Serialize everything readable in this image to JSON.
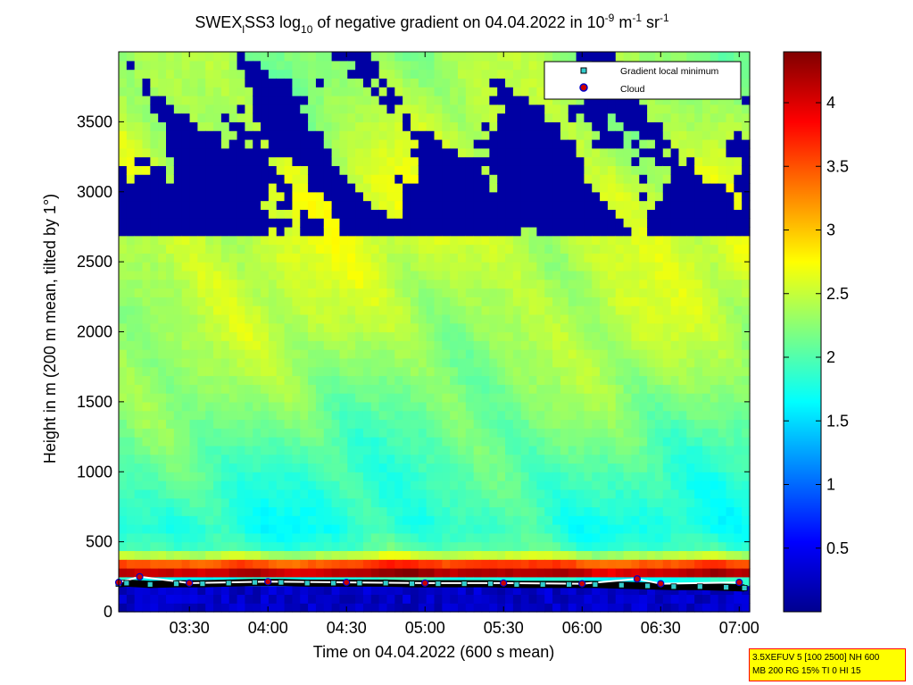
{
  "chart_data": {
    "type": "heatmap",
    "title_parts": {
      "prefix": "SWEX",
      "sub1": "l",
      "mid": "SS3 log",
      "sub2": "10",
      "text": " of negative gradient on 04.04.2022 in 10",
      "exp1": "-9",
      "unit1": " m",
      "exp2": "-1",
      "unit2": " sr",
      "exp3": "-1"
    },
    "xlabel": "Time on 04.04.2022 (600 s mean)",
    "ylabel": "Height in m (200 m mean, tilted by 1°)",
    "x_range_minutes_of_day": [
      183,
      424
    ],
    "x_ticks": [
      {
        "label": "03:30",
        "minute": 210
      },
      {
        "label": "04:00",
        "minute": 240
      },
      {
        "label": "04:30",
        "minute": 270
      },
      {
        "label": "05:00",
        "minute": 300
      },
      {
        "label": "05:30",
        "minute": 330
      },
      {
        "label": "06:00",
        "minute": 360
      },
      {
        "label": "06:30",
        "minute": 390
      },
      {
        "label": "07:00",
        "minute": 420
      }
    ],
    "ylim": [
      0,
      4000
    ],
    "y_ticks": [
      0,
      500,
      1000,
      1500,
      2000,
      2500,
      3000,
      3500
    ],
    "colorbar": {
      "range": [
        0,
        4.4
      ],
      "ticks": [
        "0.5",
        "1",
        "1.5",
        "2",
        "2.5",
        "3",
        "3.5",
        "4"
      ],
      "tick_values": [
        0.5,
        1,
        1.5,
        2,
        2.5,
        3,
        3.5,
        4
      ],
      "colormap": "jet"
    },
    "field_profile_by_height": [
      {
        "height": 0,
        "value": 0.15
      },
      {
        "height": 100,
        "value": 0.2
      },
      {
        "height": 200,
        "value": 0.6
      },
      {
        "height": 260,
        "value": 4.3
      },
      {
        "height": 320,
        "value": 3.9
      },
      {
        "height": 380,
        "value": 3.0
      },
      {
        "height": 430,
        "value": 2.0
      },
      {
        "height": 600,
        "value": 1.8
      },
      {
        "height": 1000,
        "value": 1.95
      },
      {
        "height": 1500,
        "value": 2.2
      },
      {
        "height": 2000,
        "value": 2.4
      },
      {
        "height": 2500,
        "value": 2.5
      },
      {
        "height": 3000,
        "value": 2.6
      },
      {
        "height": 3500,
        "value": 2.4
      },
      {
        "height": 4000,
        "value": 2.3
      }
    ],
    "low_value_region": {
      "value": 0.1,
      "description_free": true
    },
    "gradient_local_minimum": [
      {
        "t": 183,
        "h": 200
      },
      {
        "t": 186,
        "h": 205
      },
      {
        "t": 195,
        "h": 195
      },
      {
        "t": 205,
        "h": 200
      },
      {
        "t": 215,
        "h": 200
      },
      {
        "t": 225,
        "h": 205
      },
      {
        "t": 235,
        "h": 210
      },
      {
        "t": 245,
        "h": 210
      },
      {
        "t": 255,
        "h": 205
      },
      {
        "t": 265,
        "h": 205
      },
      {
        "t": 275,
        "h": 205
      },
      {
        "t": 285,
        "h": 205
      },
      {
        "t": 295,
        "h": 200
      },
      {
        "t": 305,
        "h": 200
      },
      {
        "t": 315,
        "h": 200
      },
      {
        "t": 325,
        "h": 200
      },
      {
        "t": 335,
        "h": 195
      },
      {
        "t": 345,
        "h": 195
      },
      {
        "t": 355,
        "h": 195
      },
      {
        "t": 365,
        "h": 195
      },
      {
        "t": 375,
        "h": 190
      },
      {
        "t": 385,
        "h": 185
      },
      {
        "t": 395,
        "h": 180
      },
      {
        "t": 405,
        "h": 180
      },
      {
        "t": 415,
        "h": 175
      },
      {
        "t": 422,
        "h": 170
      }
    ],
    "cloud": [
      {
        "t": 183,
        "h": 210
      },
      {
        "t": 191,
        "h": 250
      },
      {
        "t": 210,
        "h": 205
      },
      {
        "t": 240,
        "h": 215
      },
      {
        "t": 270,
        "h": 210
      },
      {
        "t": 300,
        "h": 205
      },
      {
        "t": 330,
        "h": 205
      },
      {
        "t": 360,
        "h": 200
      },
      {
        "t": 381,
        "h": 235
      },
      {
        "t": 390,
        "h": 200
      },
      {
        "t": 420,
        "h": 210
      }
    ],
    "legend": {
      "position": "top-right",
      "entries": [
        {
          "name": "Gradient local minimum",
          "marker": "square",
          "color": "#33cccc"
        },
        {
          "name": "Cloud",
          "marker": "circle",
          "color": "#cc0000",
          "edge": "#0000cc"
        }
      ]
    }
  },
  "stamp": {
    "line1": "3.5XEFUV 5 [100 2500] NH 600",
    "line2": "MB 200 RG 15% TI 0 HI 15"
  }
}
